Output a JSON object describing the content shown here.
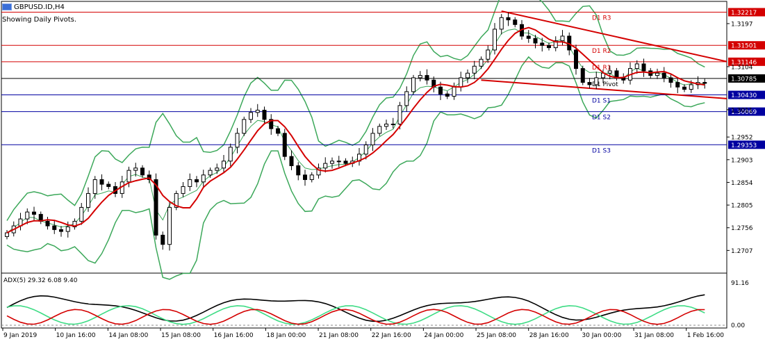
{
  "window": {
    "symbol_title": "GBPUSD.ID,H4",
    "indicator_note": "Showing Daily Pivots."
  },
  "chart_data": {
    "type": "candlestick",
    "price_axis": {
      "ylim": [
        1.2658,
        1.3245
      ],
      "ticks": [
        1.3197,
        1.3104,
        1.3011,
        1.2952,
        1.2903,
        1.2854,
        1.2805,
        1.2756,
        1.2707
      ]
    },
    "price_tags": [
      {
        "value": 1.32217,
        "color": "#d40000"
      },
      {
        "value": 1.31501,
        "color": "#d40000"
      },
      {
        "value": 1.31146,
        "color": "#d40000"
      },
      {
        "value": 1.30785,
        "color": "#000000"
      },
      {
        "value": 1.3043,
        "color": "#0000a0"
      },
      {
        "value": 1.30069,
        "color": "#0000a0"
      },
      {
        "value": 1.29353,
        "color": "#0000a0"
      }
    ],
    "pivot_levels": [
      {
        "name": "D1 R3",
        "value": 1.32217,
        "color": "#d40000"
      },
      {
        "name": "D1 R2",
        "value": 1.31501,
        "color": "#d40000"
      },
      {
        "name": "D1 R1",
        "value": 1.31146,
        "color": "#d40000"
      },
      {
        "name": "D1 Pivot",
        "value": 1.30785,
        "color": "#000000"
      },
      {
        "name": "D1 S1",
        "value": 1.3043,
        "color": "#0000a0"
      },
      {
        "name": "D1 S2",
        "value": 1.30069,
        "color": "#0000a0"
      },
      {
        "name": "D1 S3",
        "value": 1.29353,
        "color": "#0000a0"
      }
    ],
    "x_labels": [
      "9 Jan 2019",
      "10 Jan 16:00",
      "14 Jan 08:00",
      "15 Jan 08:00",
      "16 Jan 16:00",
      "18 Jan 00:00",
      "21 Jan 08:00",
      "22 Jan 16:00",
      "24 Jan 00:00",
      "25 Jan 08:00",
      "28 Jan 16:00",
      "30 Jan 00:00",
      "31 Jan 08:00",
      "1 Feb 16:00"
    ],
    "close_series": [
      1.2745,
      1.276,
      1.2775,
      1.279,
      1.2785,
      1.277,
      1.276,
      1.2752,
      1.2748,
      1.2758,
      1.277,
      1.28,
      1.283,
      1.286,
      1.285,
      1.2845,
      1.283,
      1.2855,
      1.288,
      1.2885,
      1.287,
      1.286,
      1.274,
      1.272,
      1.28,
      1.283,
      1.2845,
      1.286,
      1.2855,
      1.287,
      1.288,
      1.2885,
      1.29,
      1.293,
      1.296,
      1.299,
      1.3005,
      1.301,
      1.299,
      1.297,
      1.296,
      1.291,
      1.289,
      1.287,
      1.286,
      1.287,
      1.2885,
      1.2895,
      1.29,
      1.29,
      1.2895,
      1.29,
      1.2915,
      1.2935,
      1.296,
      1.2975,
      1.298,
      1.298,
      1.302,
      1.305,
      1.308,
      1.3085,
      1.3075,
      1.306,
      1.3045,
      1.304,
      1.306,
      1.308,
      1.309,
      1.3105,
      1.312,
      1.314,
      1.3185,
      1.321,
      1.3205,
      1.3195,
      1.317,
      1.3165,
      1.3155,
      1.315,
      1.3145,
      1.316,
      1.317,
      1.314,
      1.31,
      1.307,
      1.3065,
      1.308,
      1.309,
      1.3095,
      1.308,
      1.3075,
      1.31,
      1.311,
      1.3095,
      1.3085,
      1.309,
      1.308,
      1.307,
      1.306,
      1.3055,
      1.3065,
      1.307,
      1.3068
    ],
    "adx_panel": {
      "label": "ADX(5) 29.32 6.08 9.40",
      "top_tick": "91.16",
      "bottom_tick": "0.00",
      "ylim": [
        0,
        100
      ]
    }
  }
}
